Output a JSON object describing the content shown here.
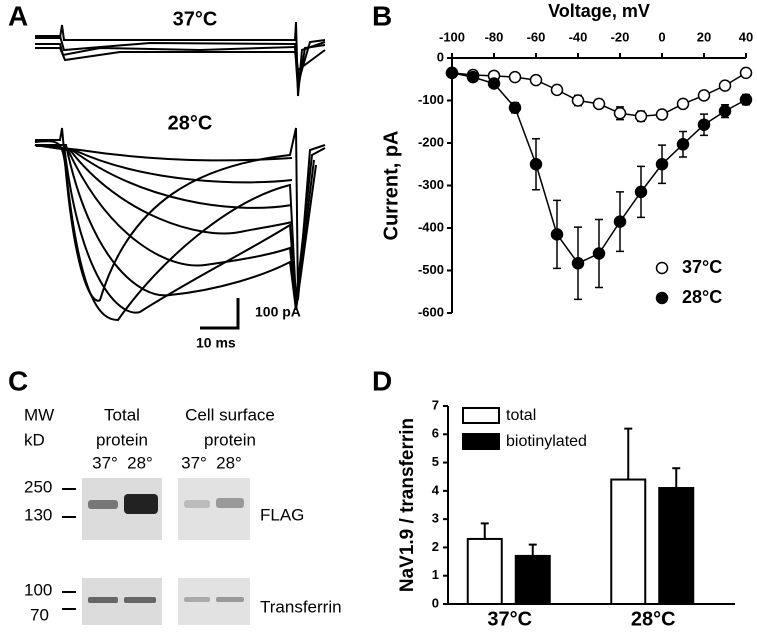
{
  "panels": {
    "a": "A",
    "b": "B",
    "c": "C",
    "d": "D"
  },
  "traces": {
    "label_37": "37°C",
    "label_28": "28°C",
    "scale_current": "100 pA",
    "scale_time": "10 ms"
  },
  "blot": {
    "mw": "MW",
    "kd": "kD",
    "total": [
      "Total",
      "protein"
    ],
    "surface": [
      "Cell surface",
      "protein"
    ],
    "lanes": [
      "37°",
      "28°",
      "37°",
      "28°"
    ],
    "markers": [
      "250",
      "130",
      "100",
      "70"
    ],
    "flag": "FLAG",
    "transferrin": "Transferrin"
  },
  "chart_data": [
    {
      "type": "line",
      "x_label": "Voltage, mV",
      "y_label": "Current, pA",
      "x": [
        -100,
        -90,
        -80,
        -70,
        -60,
        -50,
        -40,
        -30,
        -20,
        -10,
        0,
        10,
        20,
        30,
        40
      ],
      "series": [
        {
          "name": "37°C",
          "color": "#ffffff",
          "values": [
            -35,
            -40,
            -42,
            -45,
            -52,
            -75,
            -100,
            -108,
            -130,
            -137,
            -133,
            -108,
            -88,
            -65,
            -35
          ],
          "errors": [
            5,
            5,
            5,
            6,
            8,
            10,
            12,
            10,
            15,
            12,
            10,
            8,
            8,
            6,
            5
          ]
        },
        {
          "name": "28°C",
          "color": "#000000",
          "values": [
            -35,
            -45,
            -60,
            -117,
            -250,
            -415,
            -483,
            -460,
            -385,
            -315,
            -250,
            -203,
            -157,
            -125,
            -98
          ],
          "errors": [
            5,
            6,
            8,
            12,
            60,
            80,
            85,
            80,
            70,
            60,
            45,
            30,
            25,
            15,
            12
          ]
        }
      ],
      "xlim": [
        -100,
        40
      ],
      "xticks": [
        -100,
        -80,
        -60,
        -40,
        -20,
        0,
        20,
        40
      ],
      "ylim": [
        -600,
        0
      ],
      "yticks": [
        0,
        -100,
        -200,
        -300,
        -400,
        -500,
        -600
      ],
      "legend": "lower right"
    },
    {
      "type": "bar",
      "y_label": "NaV1.9 / transferrin",
      "categories": [
        "37°C",
        "28°C"
      ],
      "series": [
        {
          "name": "total",
          "color": "#ffffff",
          "values": [
            2.3,
            4.4
          ],
          "errors": [
            0.55,
            1.8
          ]
        },
        {
          "name": "biotinylated",
          "color": "#000000",
          "values": [
            1.7,
            4.1
          ],
          "errors": [
            0.4,
            0.7
          ]
        }
      ],
      "ylim": [
        0,
        7
      ],
      "yticks": [
        0,
        1,
        2,
        3,
        4,
        5,
        6,
        7
      ],
      "legend": "upper left"
    }
  ]
}
